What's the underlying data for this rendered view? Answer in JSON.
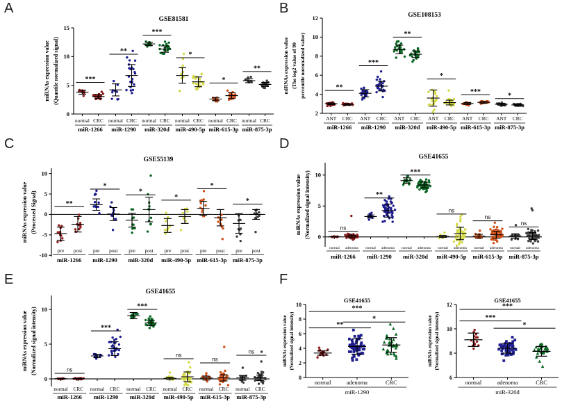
{
  "palette": {
    "miR-1266": "#8B1A1A",
    "miR-1290": "#1E1E8F",
    "miR-320d": "#0B6623",
    "miR-490-5p": "#D4DA45",
    "miR-615-3p": "#CC4E16",
    "miR-875-3p": "#3E3E3E",
    "axis": "#000000"
  },
  "chart_data": [
    {
      "id": "A",
      "label": "A",
      "type": "scatter",
      "title": "GSE81581",
      "ylabel": [
        "miRNAs expression value",
        "(Quantile normalized signal)"
      ],
      "ylim": [
        0,
        15
      ],
      "yticks": [
        0,
        5,
        10,
        15
      ],
      "bottom_axis": true,
      "zero_line": false,
      "ticks_at": "bottom",
      "group_labels": [
        "normal",
        "CRC"
      ],
      "categories": [
        {
          "name": "miR-1266",
          "color": "#8B1A1A",
          "sig": "***",
          "sig_y": 5.5,
          "groups": [
            {
              "label": "normal",
              "mean": 3.8,
              "sd": 0.35,
              "n": 9
            },
            {
              "label": "CRC",
              "mean": 3.05,
              "sd": 0.35,
              "n": 22
            }
          ]
        },
        {
          "name": "miR-1290",
          "color": "#1E1E8F",
          "sig": "**",
          "sig_y": 10.4,
          "groups": [
            {
              "label": "normal",
              "mean": 4.2,
              "sd": 1.05,
              "n": 9
            },
            {
              "label": "CRC",
              "mean": 6.7,
              "sd": 1.9,
              "n": 22
            }
          ]
        },
        {
          "name": "miR-320d",
          "color": "#0B6623",
          "sig": "***",
          "sig_y": 13.7,
          "groups": [
            {
              "label": "normal",
              "mean": 12.2,
              "sd": 0.3,
              "n": 10
            },
            {
              "label": "CRC",
              "mean": 11.3,
              "sd": 0.55,
              "n": 22
            }
          ]
        },
        {
          "name": "miR-490-5p",
          "color": "#D4DA45",
          "sig": "*",
          "sig_y": 9.8,
          "groups": [
            {
              "label": "normal",
              "mean": 6.7,
              "sd": 1.35,
              "n": 8,
              "extra": [
                9.6
              ]
            },
            {
              "label": "CRC",
              "mean": 5.6,
              "sd": 0.85,
              "n": 20
            }
          ]
        },
        {
          "name": "miR-615-3p",
          "color": "#CC4E16",
          "sig": "*",
          "sig_y": 5.4,
          "groups": [
            {
              "label": "normal",
              "mean": 2.6,
              "sd": 0.28,
              "n": 9
            },
            {
              "label": "CRC",
              "mean": 3.2,
              "sd": 0.5,
              "n": 20
            }
          ]
        },
        {
          "name": "miR-875-3p",
          "color": "#3E3E3E",
          "sig": "**",
          "sig_y": 7.4,
          "groups": [
            {
              "label": "normal",
              "mean": 5.8,
              "sd": 0.35,
              "n": 9
            },
            {
              "label": "CRC",
              "mean": 5.15,
              "sd": 0.35,
              "n": 20
            }
          ]
        }
      ]
    },
    {
      "id": "B",
      "label": "B",
      "type": "scatter",
      "title": "GSE108153",
      "ylabel": [
        "miRNAs expression value",
        "(The log2 value of 90",
        "percentile noromalized value)"
      ],
      "ylim": [
        2,
        12
      ],
      "yticks": [
        2,
        4,
        6,
        8,
        10,
        12
      ],
      "bottom_axis": true,
      "zero_line": false,
      "ticks_at": "bottom",
      "group_labels": [
        "ANT",
        "CRC"
      ],
      "categories": [
        {
          "name": "miR-1266",
          "color": "#8B1A1A",
          "sig": "**",
          "sig_y": 4.4,
          "groups": [
            {
              "label": "ANT",
              "mean": 3.0,
              "sd": 0.09,
              "n": 22
            },
            {
              "label": "CRC",
              "mean": 2.93,
              "sd": 0.09,
              "n": 22
            }
          ]
        },
        {
          "name": "miR-1290",
          "color": "#1E1E8F",
          "sig": "***",
          "sig_y": 7.0,
          "groups": [
            {
              "label": "ANT",
              "mean": 4.1,
              "sd": 0.38,
              "n": 22
            },
            {
              "label": "CRC",
              "mean": 4.85,
              "sd": 0.5,
              "n": 22,
              "extra": [
                6.4
              ]
            }
          ]
        },
        {
          "name": "miR-320d",
          "color": "#0B6623",
          "sig": "**",
          "sig_y": 10.0,
          "groups": [
            {
              "label": "ANT",
              "mean": 8.7,
              "sd": 0.45,
              "n": 25
            },
            {
              "label": "CRC",
              "mean": 8.2,
              "sd": 0.35,
              "n": 25
            }
          ]
        },
        {
          "name": "miR-490-5p",
          "color": "#D4DA45",
          "sig": "*",
          "sig_y": 5.6,
          "groups": [
            {
              "label": "ANT",
              "mean": 3.6,
              "sd": 0.85,
              "n": 20
            },
            {
              "label": "CRC",
              "mean": 3.13,
              "sd": 0.25,
              "n": 20,
              "extra": [
                4.4
              ]
            }
          ]
        },
        {
          "name": "miR-615-3p",
          "color": "#CC4E16",
          "sig": "***",
          "sig_y": 3.95,
          "groups": [
            {
              "label": "ANT",
              "mean": 3.03,
              "sd": 0.1,
              "n": 22
            },
            {
              "label": "CRC",
              "mean": 3.15,
              "sd": 0.1,
              "n": 22
            }
          ]
        },
        {
          "name": "miR-875-3p",
          "color": "#3E3E3E",
          "sig": "*",
          "sig_y": 3.55,
          "groups": [
            {
              "label": "ANT",
              "mean": 2.95,
              "sd": 0.1,
              "n": 22
            },
            {
              "label": "CRC",
              "mean": 2.88,
              "sd": 0.08,
              "n": 22
            }
          ]
        }
      ]
    },
    {
      "id": "C",
      "label": "C",
      "type": "scatter",
      "title": "GSE55139",
      "ylabel": [
        "miRNAs expression value",
        "(Processed Signal)"
      ],
      "ylim": [
        -10.3,
        11.3
      ],
      "yticks": [
        -10,
        -5,
        0,
        5,
        10
      ],
      "bottom_axis": false,
      "zero_line": true,
      "ticks_at": "none",
      "group_labels": [
        "pre",
        "post"
      ],
      "categories": [
        {
          "name": "miR-1266",
          "color": "#8B1A1A",
          "sig": "**",
          "sig_y": 1.9,
          "groups": [
            {
              "label": "pre",
              "mean": -4.7,
              "sd": 1.6,
              "n": 11
            },
            {
              "label": "post",
              "mean": -2.4,
              "sd": 1.9,
              "n": 10
            }
          ]
        },
        {
          "name": "miR-1290",
          "color": "#1E1E8F",
          "sig": "*",
          "sig_y": 6.2,
          "groups": [
            {
              "label": "pre",
              "mean": 2.4,
              "sd": 1.4,
              "n": 10,
              "extra": [
                5.8
              ]
            },
            {
              "label": "post",
              "mean": 0.1,
              "sd": 1.6,
              "n": 10,
              "extra": [
                -3.8
              ]
            }
          ]
        },
        {
          "name": "miR-320d",
          "color": "#0B6623",
          "sig": "*",
          "sig_y": 4.8,
          "groups": [
            {
              "label": "pre",
              "mean": -1.4,
              "sd": 1.7,
              "n": 10
            },
            {
              "label": "post",
              "mean": 1.2,
              "sd": 3.0,
              "n": 10,
              "extra": [
                9.5
              ]
            }
          ]
        },
        {
          "name": "miR-490-5p",
          "color": "#D4DA45",
          "sig": "*",
          "sig_y": 3.5,
          "groups": [
            {
              "label": "pre",
              "mean": -2.7,
              "sd": 1.7,
              "n": 9
            },
            {
              "label": "post",
              "mean": -0.5,
              "sd": 1.7,
              "n": 8
            }
          ]
        },
        {
          "name": "miR-615-3p",
          "color": "#CC4E16",
          "sig": "*",
          "sig_y": 6.3,
          "groups": [
            {
              "label": "pre",
              "mean": 1.5,
              "sd": 1.7,
              "n": 11,
              "extra": [
                5.7
              ]
            },
            {
              "label": "post",
              "mean": -0.8,
              "sd": 2.0,
              "n": 10
            }
          ]
        },
        {
          "name": "miR-875-3p",
          "color": "#3E3E3E",
          "sig": "*",
          "sig_y": 2.5,
          "groups": [
            {
              "label": "pre",
              "mean": -2.2,
              "sd": 2.4,
              "n": 8,
              "extra": [
                -6.5
              ]
            },
            {
              "label": "post",
              "mean": 0.0,
              "sd": 1.2,
              "n": 9,
              "extra": [
                -4.3
              ]
            }
          ]
        }
      ]
    },
    {
      "id": "D",
      "label": "D",
      "type": "scatter",
      "title": "GSE41655",
      "ylabel": [
        "miRNAs expression value",
        "(Normalized signal intensity)"
      ],
      "ylim": [
        -1.6,
        12
      ],
      "yticks": [
        0,
        5,
        10
      ],
      "bottom_axis": false,
      "zero_line": true,
      "ticks_at": "zero",
      "group_labels": [
        "normal",
        "adenoma"
      ],
      "categories": [
        {
          "name": "miR-1266",
          "color": "#8B1A1A",
          "sig": "ns",
          "sig_y": 0.9,
          "groups": [
            {
              "label": "normal",
              "mean": 0.04,
              "sd": 0.05,
              "n": 14
            },
            {
              "label": "adenoma",
              "mean": 0.08,
              "sd": 0.22,
              "n": 50,
              "extra": [
                3.4
              ]
            }
          ]
        },
        {
          "name": "miR-1290",
          "color": "#1E1E8F",
          "sig": "**",
          "sig_y": 6.3,
          "groups": [
            {
              "label": "normal",
              "mean": 3.3,
              "sd": 0.25,
              "n": 14
            },
            {
              "label": "adenoma",
              "mean": 4.25,
              "sd": 1.05,
              "n": 55
            }
          ]
        },
        {
          "name": "miR-320d",
          "color": "#0B6623",
          "sig": "***",
          "sig_y": 10.0,
          "groups": [
            {
              "label": "normal",
              "mean": 9.1,
              "sd": 0.45,
              "n": 14
            },
            {
              "label": "adenoma",
              "mean": 8.4,
              "sd": 0.45,
              "n": 55
            }
          ]
        },
        {
          "name": "miR-490-5p",
          "color": "#D4DA45",
          "sig": "ns",
          "sig_y": 3.7,
          "groups": [
            {
              "label": "normal",
              "mean": 0.08,
              "sd": 0.15,
              "n": 14,
              "extra": [
                0.7
              ]
            },
            {
              "label": "adenoma",
              "mean": 0.55,
              "sd": 1.0,
              "n": 45,
              "extra": [
                3.3,
                3.6
              ]
            }
          ]
        },
        {
          "name": "miR-615-3p",
          "color": "#CC4E16",
          "sig": "ns",
          "sig_y": 2.6,
          "groups": [
            {
              "label": "normal",
              "mean": 0.12,
              "sd": 0.3,
              "n": 14,
              "extra": [
                1.0
              ]
            },
            {
              "label": "adenoma",
              "mean": 0.35,
              "sd": 0.55,
              "n": 50,
              "extra": [
                2.3
              ]
            }
          ]
        },
        {
          "name": "miR-875-3p",
          "color": "#3E3E3E",
          "sig": "ns",
          "sig_y": 1.6,
          "groups": [
            {
              "label": "normal",
              "mean": 0.15,
              "sd": 0.35,
              "n": 14,
              "extra": [
                1.9
              ]
            },
            {
              "label": "adenoma",
              "mean": 0.15,
              "sd": 0.55,
              "n": 50,
              "extra": [
                4.3,
                4.6
              ]
            }
          ]
        }
      ]
    },
    {
      "id": "E",
      "label": "E",
      "type": "scatter",
      "title": "GSE41655",
      "ylabel": [
        "miRNAs expression value",
        "(Normalized signal intensity)"
      ],
      "ylim": [
        -1.1,
        12
      ],
      "yticks": [
        0,
        5,
        10
      ],
      "bottom_axis": false,
      "zero_line": true,
      "ticks_at": "zero",
      "group_labels": [
        "normal",
        "CRC"
      ],
      "categories": [
        {
          "name": "miR-1266",
          "color": "#8B1A1A",
          "sig": "ns",
          "sig_y": 0.8,
          "groups": [
            {
              "label": "normal",
              "mean": 0.03,
              "sd": 0.04,
              "n": 14
            },
            {
              "label": "CRC",
              "mean": 0.03,
              "sd": 0.05,
              "n": 28
            }
          ]
        },
        {
          "name": "miR-1290",
          "color": "#1E1E8F",
          "sig": "***",
          "sig_y": 6.9,
          "groups": [
            {
              "label": "normal",
              "mean": 3.3,
              "sd": 0.25,
              "n": 14
            },
            {
              "label": "CRC",
              "mean": 4.35,
              "sd": 1.0,
              "n": 30
            }
          ]
        },
        {
          "name": "miR-320d",
          "color": "#0B6623",
          "sig": "***",
          "sig_y": 10.0,
          "groups": [
            {
              "label": "normal",
              "mean": 9.1,
              "sd": 0.45,
              "n": 14
            },
            {
              "label": "CRC",
              "mean": 8.05,
              "sd": 0.4,
              "n": 30
            }
          ]
        },
        {
          "name": "miR-490-5p",
          "color": "#D4DA45",
          "sig": "ns",
          "sig_y": 2.9,
          "groups": [
            {
              "label": "normal",
              "mean": 0.08,
              "sd": 0.15,
              "n": 14,
              "extra": [
                0.9
              ]
            },
            {
              "label": "CRC",
              "mean": 0.3,
              "sd": 0.7,
              "n": 28,
              "extra": [
                2.4
              ]
            }
          ]
        },
        {
          "name": "miR-615-3p",
          "color": "#CC4E16",
          "sig": "ns",
          "sig_y": 2.3,
          "groups": [
            {
              "label": "normal",
              "mean": 0.12,
              "sd": 0.28,
              "n": 14,
              "extra": [
                0.8
              ]
            },
            {
              "label": "CRC",
              "mean": 0.15,
              "sd": 0.45,
              "n": 28,
              "extra": [
                4.6
              ]
            }
          ]
        },
        {
          "name": "miR-875-3p",
          "color": "#3E3E3E",
          "sig": "ns",
          "sig_y": 3.4,
          "groups": [
            {
              "label": "normal",
              "mean": 0.15,
              "sd": 0.35,
              "n": 14,
              "extra": [
                1.6
              ]
            },
            {
              "label": "CRC",
              "mean": 0.15,
              "sd": 0.4,
              "n": 28,
              "extra": [
                2.5,
                3.9
              ]
            }
          ]
        }
      ]
    },
    {
      "id": "F1",
      "label": "F",
      "type": "scatter",
      "title": "GSE41655",
      "ylabel": [
        "miRNAs expression value",
        "(Normalized signal intensity)"
      ],
      "ylim": [
        0,
        10
      ],
      "yticks": [
        0,
        2,
        4,
        6,
        8,
        10
      ],
      "bottom_axis": true,
      "zero_line": false,
      "ticks_at": "bottom",
      "xlabel": "miR-1290",
      "groups": [
        {
          "label": "normal",
          "color": "#8B1A1A",
          "marker": "circle",
          "mean": 3.35,
          "sd": 0.3,
          "n": 15
        },
        {
          "label": "adenoma",
          "color": "#1E1E8F",
          "marker": "square",
          "mean": 4.25,
          "sd": 1.05,
          "n": 55
        },
        {
          "label": "CRC",
          "color": "#0B6623",
          "marker": "triangle",
          "mean": 4.45,
          "sd": 1.0,
          "n": 30,
          "extra": [
            7.3
          ]
        }
      ],
      "sig": [
        {
          "a": 0,
          "b": 2,
          "label": "***",
          "y": 9.05
        },
        {
          "a": 0,
          "b": 1,
          "label": "**",
          "y": 6.8
        },
        {
          "a": 1,
          "b": 2,
          "label": "*",
          "y": 7.6
        }
      ]
    },
    {
      "id": "F2",
      "label": "",
      "type": "scatter",
      "title": "GSE41655",
      "ylabel": [
        "miRNAs expression value",
        "(Normalized signal intensity)"
      ],
      "ylim": [
        6,
        12
      ],
      "yticks": [
        6,
        8,
        10,
        12
      ],
      "bottom_axis": true,
      "zero_line": false,
      "ticks_at": "bottom",
      "xlabel": "miR-320d",
      "groups": [
        {
          "label": "normal",
          "color": "#8B1A1A",
          "marker": "circle",
          "mean": 9.1,
          "sd": 0.55,
          "n": 16
        },
        {
          "label": "adenoma",
          "color": "#1E1E8F",
          "marker": "square",
          "mean": 8.4,
          "sd": 0.4,
          "n": 55
        },
        {
          "label": "CRC",
          "color": "#0B6623",
          "marker": "triangle",
          "mean": 8.15,
          "sd": 0.4,
          "n": 30,
          "extra": [
            6.9
          ]
        }
      ],
      "sig": [
        {
          "a": 0,
          "b": 2,
          "label": "***",
          "y": 11.6
        },
        {
          "a": 0,
          "b": 1,
          "label": "***",
          "y": 10.65
        },
        {
          "a": 1,
          "b": 2,
          "label": "*",
          "y": 10.05
        }
      ]
    }
  ]
}
